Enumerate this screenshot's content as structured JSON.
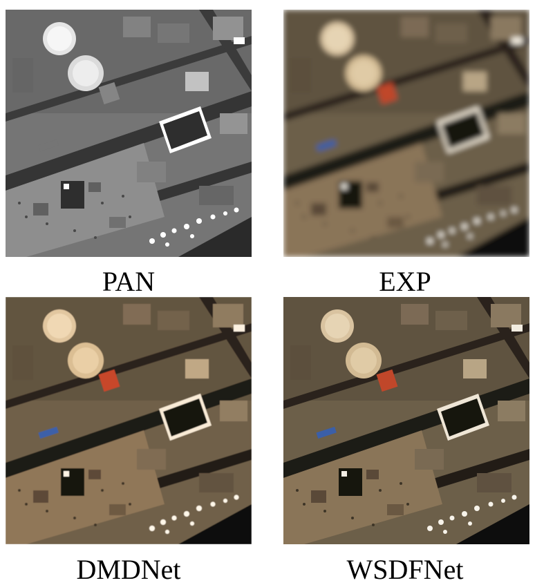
{
  "panels": [
    {
      "key": "pan",
      "label": "PAN",
      "mode": "grayscale",
      "blur": 0
    },
    {
      "key": "exp",
      "label": "EXP",
      "mode": "color",
      "blur": 4
    },
    {
      "key": "dmd",
      "label": "DMDNet",
      "mode": "color",
      "blur": 0.6
    },
    {
      "key": "wsdf",
      "label": "WSDFNet",
      "mode": "color",
      "blur": 0.3
    }
  ],
  "colors": {
    "ground": "#7a6a52",
    "ground_dark": "#3a3328",
    "roof_light": "#c8b28a",
    "dome": "#d9c3a0",
    "red_roof": "#c0472c",
    "blue_patch": "#3b5fa8",
    "shadow": "#141210"
  }
}
